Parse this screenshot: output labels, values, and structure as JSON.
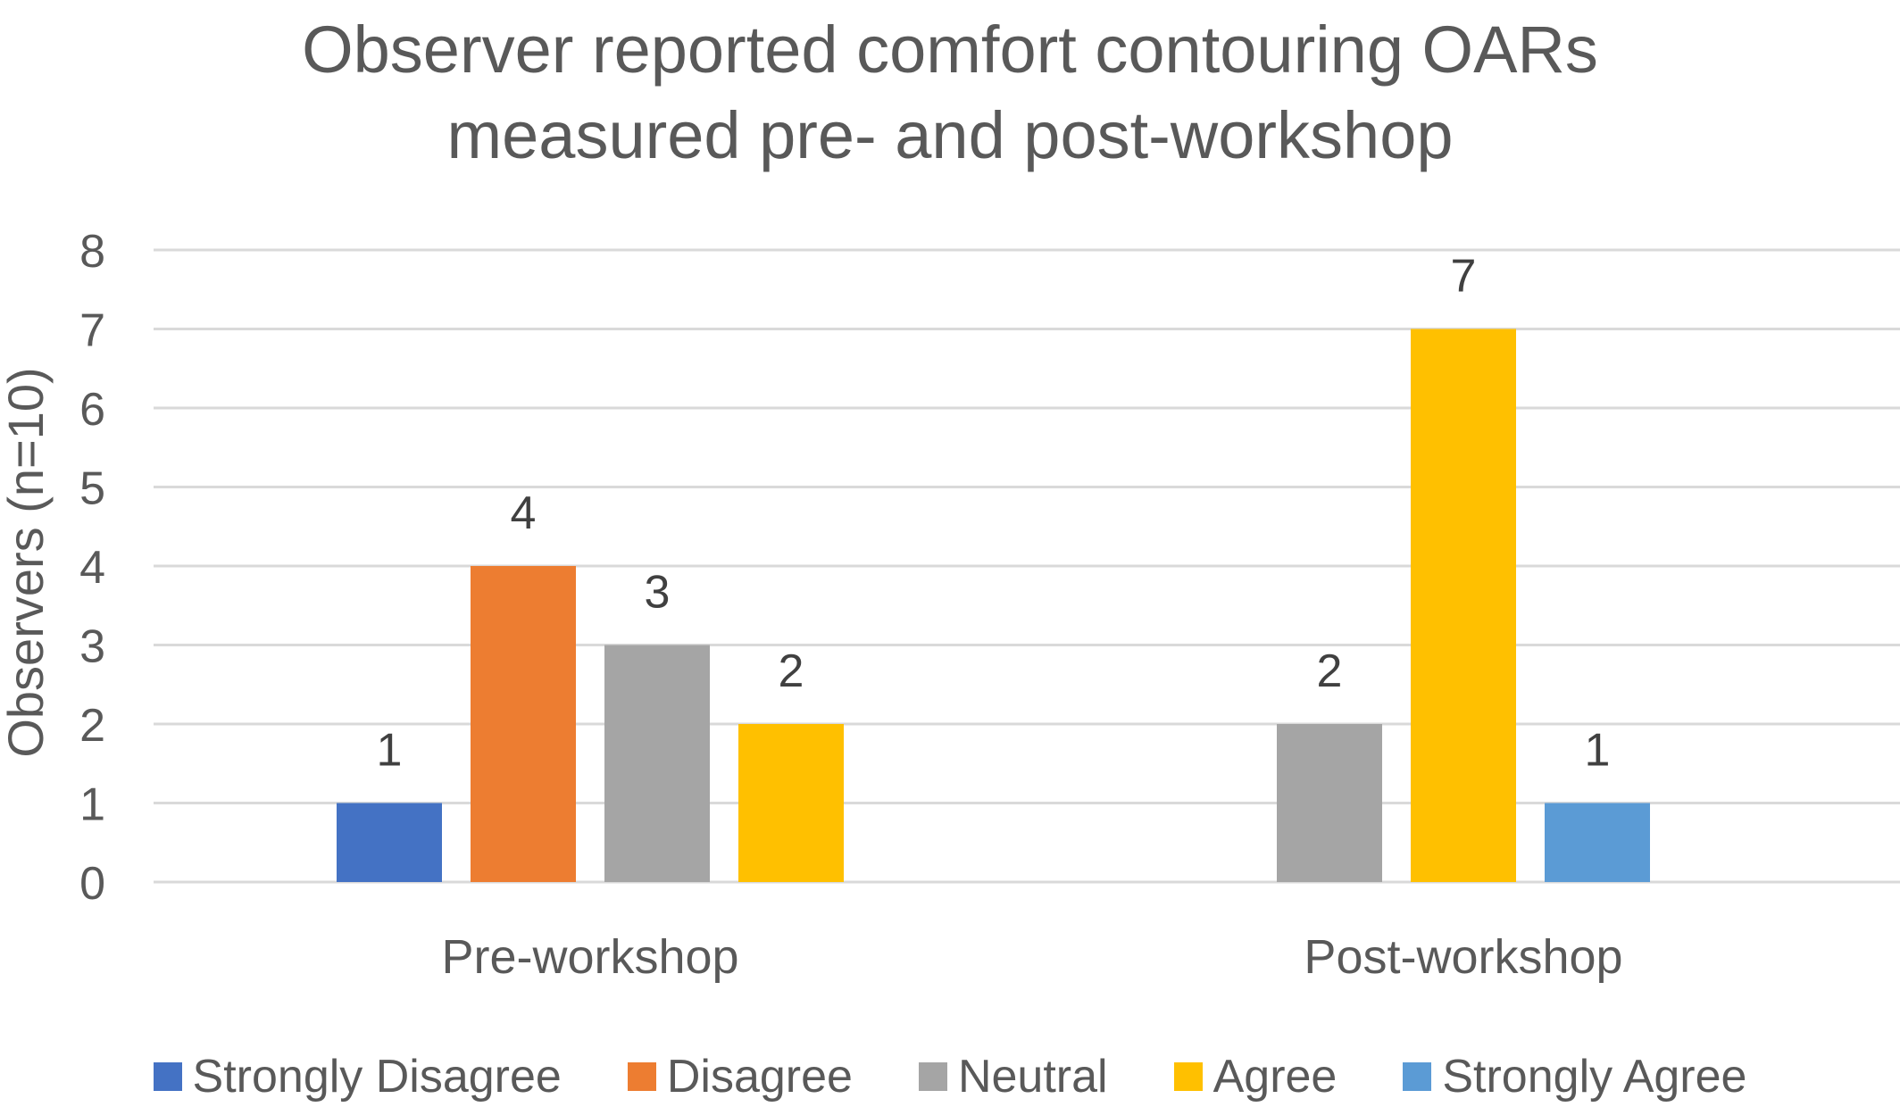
{
  "chart_data": {
    "type": "bar",
    "title_lines": [
      "Observer reported comfort contouring OARs",
      "measured pre- and post-workshop"
    ],
    "ylabel": "Observers (n=10)",
    "xlabel": "",
    "ylim": [
      0,
      8
    ],
    "yticks": [
      0,
      1,
      2,
      3,
      4,
      5,
      6,
      7,
      8
    ],
    "grid": true,
    "legend_position": "bottom",
    "categories": [
      "Pre-workshop",
      "Post-workshop"
    ],
    "series": [
      {
        "name": "Strongly Disagree",
        "color": "#4472C4",
        "values": [
          1,
          null
        ]
      },
      {
        "name": "Disagree",
        "color": "#ED7D31",
        "values": [
          4,
          null
        ]
      },
      {
        "name": "Neutral",
        "color": "#A5A5A5",
        "values": [
          3,
          2
        ]
      },
      {
        "name": "Agree",
        "color": "#FFC000",
        "values": [
          2,
          7
        ]
      },
      {
        "name": "Strongly Agree",
        "color": "#5B9BD5",
        "values": [
          null,
          1
        ]
      }
    ]
  }
}
